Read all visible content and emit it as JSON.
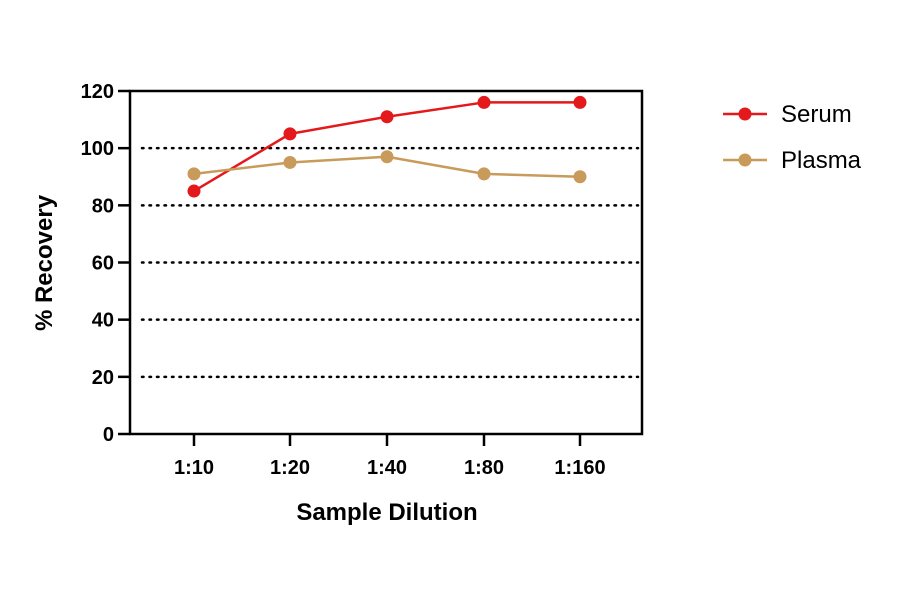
{
  "chart_data": {
    "type": "line",
    "categories": [
      "1:10",
      "1:20",
      "1:40",
      "1:80",
      "1:160"
    ],
    "series": [
      {
        "name": "Serum",
        "color": "#e3191c",
        "values": [
          85,
          105,
          111,
          116,
          116
        ]
      },
      {
        "name": "Plasma",
        "color": "#c89b5a",
        "values": [
          91,
          95,
          97,
          91,
          90
        ]
      }
    ],
    "xlabel": "Sample Dilution",
    "ylabel": "% Recovery",
    "ylim": [
      0,
      120
    ],
    "yticks": [
      "0",
      "20",
      "40",
      "60",
      "80",
      "100",
      "120"
    ],
    "grid": "horizontal-dotted",
    "legend_position": "right"
  }
}
